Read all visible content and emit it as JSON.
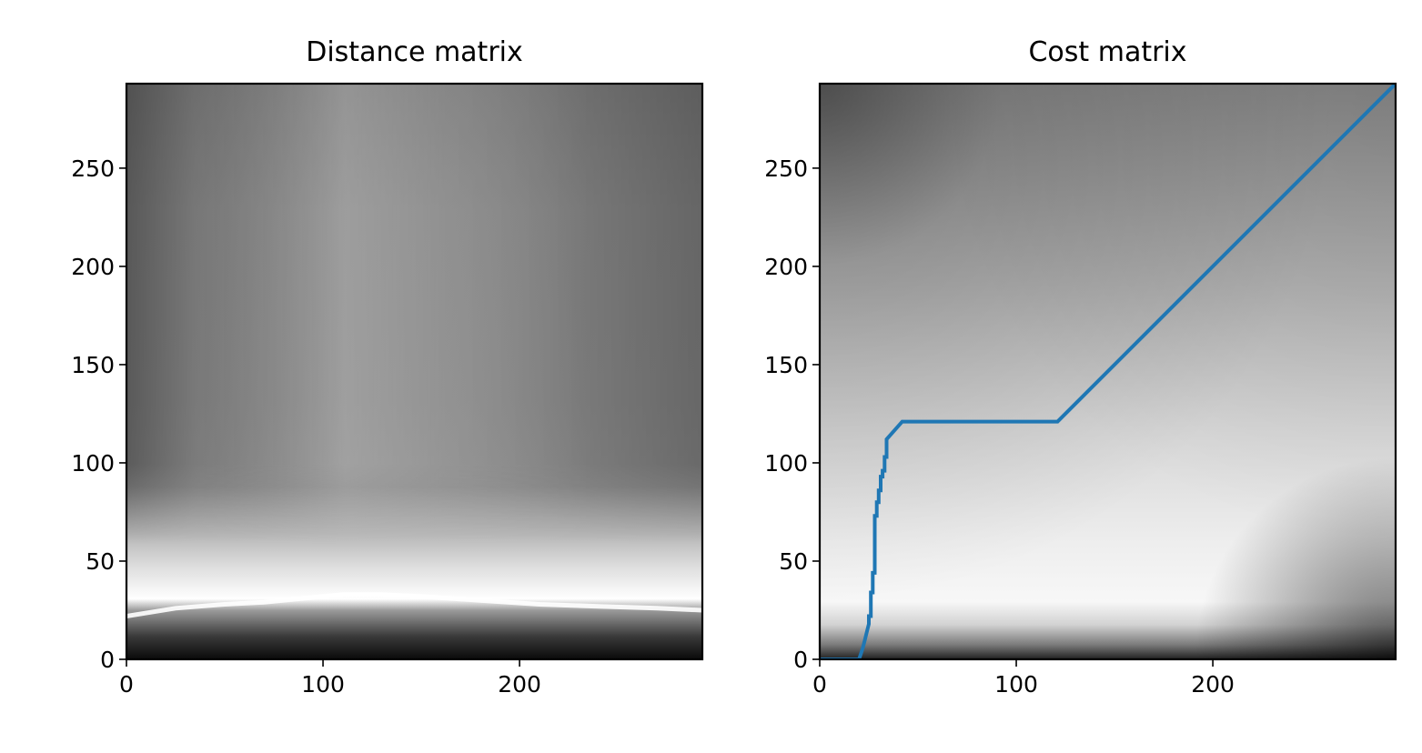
{
  "chart_data": [
    {
      "type": "heatmap",
      "title": "Distance matrix",
      "xlabel": "",
      "ylabel": "",
      "xlim": [
        0,
        293
      ],
      "ylim": [
        0,
        293
      ],
      "xticks": [
        0,
        100,
        200
      ],
      "xtick_labels": [
        "0",
        "100",
        "200"
      ],
      "yticks": [
        0,
        50,
        100,
        150,
        200,
        250
      ],
      "ytick_labels": [
        "0",
        "50",
        "100",
        "150",
        "200",
        "250"
      ],
      "colormap": "gray",
      "origin": "lower",
      "min_valley": {
        "x": [
          0,
          25,
          50,
          70,
          90,
          110,
          130,
          150,
          180,
          210,
          240,
          270,
          293
        ],
        "y": [
          22,
          26,
          28,
          29,
          31,
          33,
          33,
          32,
          30,
          28,
          27,
          26,
          25
        ]
      },
      "grid": false,
      "legend": "none"
    },
    {
      "type": "heatmap",
      "title": "Cost matrix",
      "xlabel": "",
      "ylabel": "",
      "xlim": [
        0,
        293
      ],
      "ylim": [
        0,
        293
      ],
      "xticks": [
        0,
        100,
        200
      ],
      "xtick_labels": [
        "0",
        "100",
        "200"
      ],
      "yticks": [
        0,
        50,
        100,
        150,
        200,
        250
      ],
      "ytick_labels": [
        "0",
        "50",
        "100",
        "150",
        "200",
        "250"
      ],
      "colormap": "gray",
      "origin": "lower",
      "overlay": {
        "type": "line",
        "color": "#1f77b4",
        "x": [
          0,
          20,
          21,
          22,
          23,
          24,
          25,
          25,
          26,
          26,
          27,
          27,
          28,
          28,
          29,
          29,
          30,
          30,
          31,
          31,
          32,
          32,
          33,
          33,
          34,
          34,
          42,
          121,
          293
        ],
        "y": [
          0,
          0,
          3,
          6,
          10,
          14,
          18,
          22,
          22,
          34,
          34,
          44,
          44,
          73,
          73,
          80,
          80,
          86,
          86,
          93,
          93,
          96,
          96,
          103,
          103,
          112,
          121,
          121,
          293
        ]
      },
      "grid": false,
      "legend": "none"
    }
  ]
}
